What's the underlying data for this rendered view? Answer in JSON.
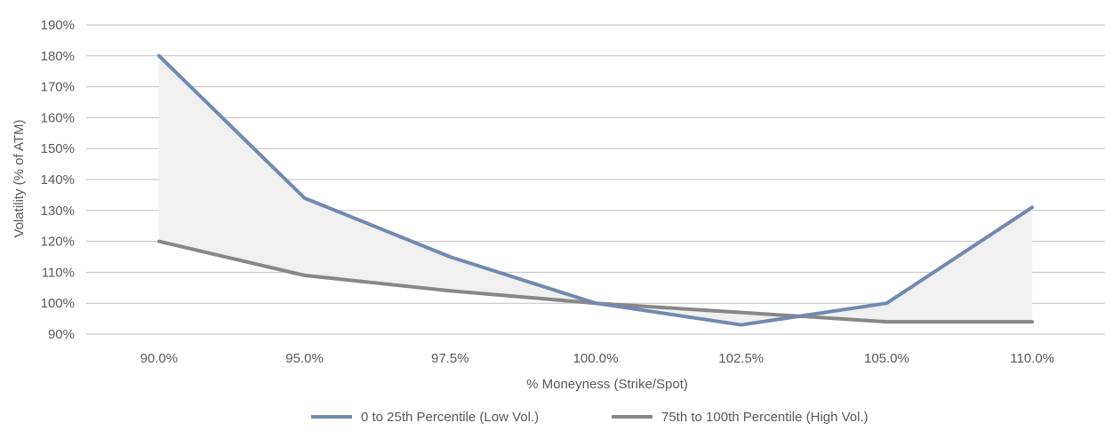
{
  "chart_data": {
    "type": "line",
    "title": "",
    "xlabel": "% Moneyness (Strike/Spot)",
    "ylabel": "Volatility (% of ATM)",
    "categories": [
      "90.0%",
      "95.0%",
      "97.5%",
      "100.0%",
      "102.5%",
      "105.0%",
      "110.0%"
    ],
    "ylim": [
      90,
      190
    ],
    "yticks": [
      90,
      100,
      110,
      120,
      130,
      140,
      150,
      160,
      170,
      180,
      190
    ],
    "ytick_labels": [
      "90%",
      "100%",
      "110%",
      "120%",
      "130%",
      "140%",
      "150%",
      "160%",
      "170%",
      "180%",
      "190%"
    ],
    "grid": "horizontal",
    "legend_position": "bottom",
    "shaded_between_series": true,
    "series": [
      {
        "name": "0 to 25th Percentile (Low Vol.)",
        "values": [
          180,
          134,
          115,
          100,
          93,
          100,
          131
        ],
        "color": "#7089b0"
      },
      {
        "name": "75th to 100th Percentile (High Vol.)",
        "values": [
          120,
          109,
          104,
          100,
          97,
          94,
          94
        ],
        "color": "#878787"
      }
    ],
    "fill_color": "#f0f0f0"
  }
}
